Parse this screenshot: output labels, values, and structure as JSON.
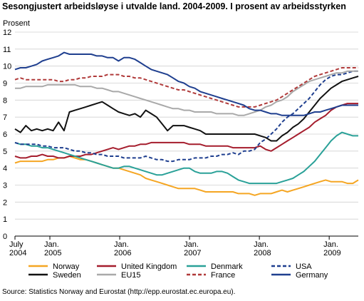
{
  "header": {
    "title": "Sesongjustert arbeidsløyse i utvalde land. 2004-2009. I prosent av arbeidsstyrken",
    "ylabel": "Prosent",
    "source": "Source: Statistics Norway and Eurostat (http://epp.eurostat.ec.europa.eu)."
  },
  "chart_data": {
    "type": "line",
    "title": "Sesongjustert arbeidsløyse i utvalde land. 2004-2009. I prosent av arbeidsstyrken",
    "ylabel": "Prosent",
    "xlabel": "",
    "ylim": [
      0,
      12
    ],
    "yticks": [
      "0",
      "1",
      "2",
      "3",
      "4",
      "5",
      "6",
      "7",
      "8",
      "9",
      "10",
      "11",
      "12"
    ],
    "grid": true,
    "legend_position": "bottom",
    "x_start": "2004-07",
    "x_end": "2009-06",
    "x_tick_labels": [
      {
        "line1": "July",
        "line2": "2004"
      },
      {
        "line1": "Jan.",
        "line2": "2005"
      },
      {
        "line1": "Jan.",
        "line2": "2006"
      },
      {
        "line1": "Jan.",
        "line2": "2007"
      },
      {
        "line1": "Jan.",
        "line2": "2008"
      },
      {
        "line1": "Jan.",
        "line2": "2009"
      }
    ],
    "x_tick_dates": [
      "2004-07",
      "2005-01",
      "2006-01",
      "2007-01",
      "2008-01",
      "2009-01"
    ],
    "series": [
      {
        "name": "Norway",
        "color": "#f5a623",
        "dash": "solid",
        "values": [
          4.3,
          4.4,
          4.4,
          4.4,
          4.4,
          4.4,
          4.5,
          4.5,
          4.6,
          4.6,
          4.7,
          4.6,
          4.5,
          4.5,
          4.4,
          4.3,
          4.2,
          4.1,
          4.0,
          4.0,
          3.9,
          3.8,
          3.7,
          3.6,
          3.4,
          3.3,
          3.2,
          3.1,
          3.0,
          2.9,
          2.8,
          2.8,
          2.8,
          2.8,
          2.7,
          2.6,
          2.6,
          2.6,
          2.6,
          2.6,
          2.6,
          2.5,
          2.5,
          2.5,
          2.4,
          2.5,
          2.5,
          2.5,
          2.6,
          2.7,
          2.6,
          2.7,
          2.8,
          2.9,
          3.0,
          3.1,
          3.2,
          3.3,
          3.2,
          3.2,
          3.2,
          3.1,
          3.1,
          3.3
        ]
      },
      {
        "name": "United Kingdom",
        "color": "#a51d2d",
        "dash": "solid",
        "values": [
          4.7,
          4.6,
          4.6,
          4.7,
          4.7,
          4.8,
          4.7,
          4.7,
          4.6,
          4.6,
          4.7,
          4.7,
          4.7,
          4.8,
          4.8,
          4.9,
          5.0,
          5.1,
          5.2,
          5.1,
          5.2,
          5.3,
          5.3,
          5.4,
          5.4,
          5.5,
          5.5,
          5.5,
          5.5,
          5.5,
          5.5,
          5.5,
          5.4,
          5.4,
          5.4,
          5.3,
          5.3,
          5.3,
          5.3,
          5.3,
          5.2,
          5.2,
          5.2,
          5.2,
          5.2,
          5.3,
          5.1,
          5.0,
          5.2,
          5.4,
          5.6,
          5.8,
          6.0,
          6.2,
          6.4,
          6.7,
          6.9,
          7.1,
          7.4,
          7.6,
          7.7,
          7.8,
          7.8,
          7.8
        ]
      },
      {
        "name": "Denmark",
        "color": "#2aa198",
        "dash": "solid",
        "values": [
          5.5,
          5.4,
          5.4,
          5.3,
          5.3,
          5.2,
          5.2,
          5.1,
          5.0,
          4.9,
          4.8,
          4.7,
          4.6,
          4.5,
          4.4,
          4.3,
          4.2,
          4.1,
          4.0,
          4.0,
          4.1,
          4.1,
          4.0,
          3.9,
          3.8,
          3.7,
          3.6,
          3.6,
          3.7,
          3.8,
          3.9,
          4.0,
          4.0,
          3.8,
          3.7,
          3.7,
          3.7,
          3.8,
          3.8,
          3.7,
          3.5,
          3.3,
          3.2,
          3.1,
          3.1,
          3.1,
          3.1,
          3.1,
          3.1,
          3.2,
          3.3,
          3.4,
          3.6,
          3.8,
          4.1,
          4.4,
          4.8,
          5.2,
          5.6,
          5.9,
          6.1,
          6.0,
          5.9,
          5.9
        ]
      },
      {
        "name": "USA",
        "color": "#1f3f8f",
        "dash": "dashed",
        "values": [
          5.5,
          5.4,
          5.4,
          5.4,
          5.4,
          5.3,
          5.3,
          5.2,
          5.2,
          5.2,
          5.1,
          5.0,
          5.0,
          4.9,
          4.9,
          4.8,
          4.8,
          4.7,
          4.7,
          4.7,
          4.6,
          4.6,
          4.6,
          4.6,
          4.7,
          4.6,
          4.5,
          4.5,
          4.4,
          4.4,
          4.5,
          4.5,
          4.5,
          4.6,
          4.6,
          4.6,
          4.7,
          4.7,
          4.8,
          4.8,
          4.9,
          4.8,
          5.0,
          5.0,
          5.1,
          5.5,
          5.7,
          6.0,
          6.3,
          6.7,
          7.0,
          7.2,
          7.5,
          7.8,
          8.1,
          8.5,
          8.9,
          9.2,
          9.4,
          9.5,
          9.5,
          9.6,
          9.7,
          9.7
        ]
      },
      {
        "name": "Sweden",
        "color": "#111111",
        "dash": "solid",
        "values": [
          6.3,
          6.1,
          6.5,
          6.2,
          6.3,
          6.2,
          6.3,
          6.2,
          6.7,
          6.2,
          7.3,
          7.4,
          7.5,
          7.6,
          7.7,
          7.8,
          7.9,
          7.7,
          7.5,
          7.3,
          7.2,
          7.1,
          7.2,
          7.0,
          7.4,
          7.2,
          7.0,
          6.6,
          6.2,
          6.5,
          6.5,
          6.5,
          6.4,
          6.3,
          6.2,
          6.0,
          6.0,
          6.0,
          6.0,
          6.0,
          6.0,
          6.0,
          6.0,
          6.0,
          6.0,
          5.9,
          5.8,
          5.6,
          5.6,
          5.9,
          6.1,
          6.4,
          6.6,
          6.9,
          7.3,
          7.7,
          8.1,
          8.4,
          8.7,
          8.9,
          9.1,
          9.2,
          9.3,
          9.4
        ]
      },
      {
        "name": "EU15",
        "color": "#a9a9a9",
        "dash": "solid",
        "values": [
          8.7,
          8.7,
          8.8,
          8.8,
          8.8,
          8.8,
          8.9,
          8.9,
          8.9,
          8.9,
          8.9,
          8.9,
          8.8,
          8.8,
          8.8,
          8.7,
          8.7,
          8.6,
          8.5,
          8.5,
          8.4,
          8.3,
          8.2,
          8.1,
          8.0,
          7.9,
          7.8,
          7.7,
          7.6,
          7.5,
          7.5,
          7.4,
          7.4,
          7.3,
          7.3,
          7.3,
          7.3,
          7.2,
          7.2,
          7.2,
          7.2,
          7.1,
          7.1,
          7.2,
          7.3,
          7.4,
          7.6,
          7.7,
          7.9,
          8.0,
          8.2,
          8.5,
          8.7,
          8.9,
          9.1,
          9.2,
          9.3,
          9.4,
          9.5,
          9.6,
          9.6,
          9.7,
          9.7,
          9.7
        ]
      },
      {
        "name": "France",
        "color": "#b03a3a",
        "dash": "dashed",
        "values": [
          9.2,
          9.3,
          9.2,
          9.2,
          9.2,
          9.2,
          9.2,
          9.2,
          9.1,
          9.1,
          9.2,
          9.2,
          9.3,
          9.3,
          9.4,
          9.4,
          9.4,
          9.5,
          9.5,
          9.5,
          9.4,
          9.4,
          9.3,
          9.3,
          9.2,
          9.1,
          9.0,
          8.9,
          8.8,
          8.7,
          8.6,
          8.6,
          8.5,
          8.4,
          8.3,
          8.2,
          8.1,
          8.0,
          7.9,
          7.8,
          7.7,
          7.6,
          7.6,
          7.6,
          7.6,
          7.7,
          7.8,
          7.9,
          8.0,
          8.2,
          8.4,
          8.6,
          8.8,
          9.0,
          9.2,
          9.4,
          9.5,
          9.6,
          9.7,
          9.8,
          9.9,
          9.9,
          9.9,
          9.9
        ]
      },
      {
        "name": "Germany",
        "color": "#1f3f8f",
        "dash": "solid",
        "values": [
          9.8,
          9.9,
          9.9,
          10.0,
          10.1,
          10.3,
          10.4,
          10.5,
          10.6,
          10.8,
          10.7,
          10.7,
          10.7,
          10.7,
          10.7,
          10.6,
          10.6,
          10.5,
          10.5,
          10.3,
          10.5,
          10.5,
          10.4,
          10.2,
          10.0,
          9.8,
          9.7,
          9.6,
          9.5,
          9.3,
          9.1,
          9.0,
          8.8,
          8.7,
          8.5,
          8.4,
          8.3,
          8.2,
          8.1,
          8.0,
          7.9,
          7.8,
          7.7,
          7.5,
          7.4,
          7.4,
          7.3,
          7.2,
          7.2,
          7.1,
          7.1,
          7.1,
          7.1,
          7.1,
          7.2,
          7.3,
          7.3,
          7.4,
          7.5,
          7.6,
          7.7,
          7.7,
          7.7,
          7.7
        ]
      }
    ],
    "legend_order": [
      "Norway",
      "United Kingdom",
      "Denmark",
      "USA",
      "Sweden",
      "EU15",
      "France",
      "Germany"
    ]
  }
}
